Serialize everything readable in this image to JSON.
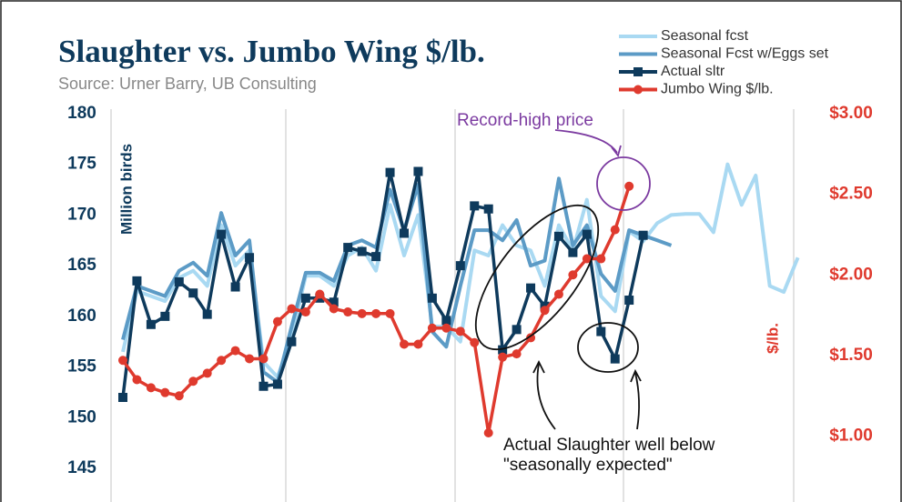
{
  "chart_data": {
    "type": "line",
    "title": "Slaughter vs. Jumbo Wing $/lb.",
    "subtitle": "Source: Urner Barry, UB Consulting",
    "ylabel": "Million birds",
    "y2label": "$/lb.",
    "annotations": [
      "Record-high price",
      "Actual Slaughter well below",
      "\"seasonally expected\""
    ],
    "categories": [
      null,
      null,
      null,
      null,
      null,
      null,
      null,
      null,
      null,
      null,
      null,
      null,
      null,
      null,
      null,
      null,
      null,
      null,
      null,
      null,
      null,
      null,
      null,
      null,
      null,
      null,
      null,
      null,
      null,
      null,
      null,
      null,
      null,
      null,
      null,
      null,
      null,
      null,
      null,
      null,
      null,
      null,
      null,
      null,
      null,
      null,
      null,
      null,
      null
    ],
    "ylim": [
      145,
      180
    ],
    "yticks": [
      145,
      150,
      155,
      160,
      165,
      170,
      175,
      180
    ],
    "y2lim": [
      0.8,
      3.0
    ],
    "y2ticks": [
      {
        "value": 1.0,
        "label": "$1.00"
      },
      {
        "value": 1.5,
        "label": "$1.50"
      },
      {
        "value": 2.0,
        "label": "$2.00"
      },
      {
        "value": 2.5,
        "label": "$2.50"
      },
      {
        "value": 3.0,
        "label": "$3.00"
      }
    ],
    "grid": false,
    "legend": "upper right",
    "series": [
      {
        "name": "Seasonal fcst",
        "color": "#a9d9f2",
        "marker": "none",
        "values": [
          156.5,
          162.5,
          162.0,
          161.5,
          163.8,
          164.5,
          163.0,
          169.0,
          165.0,
          166.5,
          155.5,
          154.0,
          158.0,
          164.0,
          164.0,
          163.0,
          166.0,
          166.8,
          164.5,
          171.0,
          166.0,
          170.0,
          159.0,
          159.0,
          157.5,
          166.5,
          166.0,
          169.0,
          167.0,
          166.5,
          163.0,
          169.0,
          166.5,
          171.5,
          162.0,
          160.5,
          168.4,
          167.4,
          169.2,
          170.0,
          170.1,
          170.1,
          168.3,
          175.0,
          171.0,
          173.9,
          163.0,
          162.4,
          165.8
        ]
      },
      {
        "name": "Seasonal Fcst w/Eggs set",
        "color": "#5c9bc6",
        "marker": "none",
        "values": [
          157.7,
          163.0,
          162.5,
          162.0,
          164.5,
          165.3,
          164.0,
          170.2,
          166.0,
          167.5,
          154.5,
          153.5,
          159.0,
          164.3,
          164.3,
          163.5,
          167.0,
          167.5,
          166.8,
          172.5,
          168.5,
          173.0,
          158.5,
          157.0,
          163.0,
          168.5,
          168.5,
          167.5,
          169.5,
          165.0,
          165.5,
          173.6,
          167.0,
          169.0,
          164.2,
          162.5,
          168.5,
          168.0,
          167.5,
          167.0,
          null,
          null,
          null,
          null,
          null,
          null,
          null,
          null,
          null
        ]
      },
      {
        "name": "Actual sltr",
        "color": "#0e3a5c",
        "marker": "square",
        "values": [
          152.0,
          163.5,
          159.2,
          160.0,
          163.4,
          162.3,
          160.2,
          168.1,
          162.9,
          165.8,
          153.1,
          153.3,
          157.5,
          161.8,
          161.8,
          161.4,
          166.8,
          166.4,
          165.9,
          174.2,
          168.2,
          174.3,
          161.8,
          159.6,
          165.0,
          170.9,
          170.6,
          156.7,
          158.7,
          162.8,
          161.0,
          167.9,
          166.3,
          168.1,
          158.5,
          155.8,
          161.6,
          168.0,
          null,
          null,
          null,
          null,
          null,
          null,
          null,
          null,
          null,
          null,
          null
        ]
      },
      {
        "name": "Jumbo Wing $/lb.",
        "color": "#df3a2e",
        "marker": "circle",
        "axis": "y2",
        "values": [
          1.47,
          1.35,
          1.3,
          1.27,
          1.25,
          1.34,
          1.39,
          1.47,
          1.53,
          1.48,
          1.48,
          1.71,
          1.79,
          1.77,
          1.88,
          1.79,
          1.77,
          1.76,
          1.76,
          1.76,
          1.57,
          1.57,
          1.67,
          1.67,
          1.65,
          1.58,
          1.02,
          1.49,
          1.51,
          1.61,
          1.78,
          1.88,
          2.0,
          2.1,
          2.1,
          2.28,
          2.55,
          null,
          null,
          null,
          null,
          null,
          null,
          null,
          null,
          null,
          null,
          null,
          null
        ]
      }
    ]
  }
}
